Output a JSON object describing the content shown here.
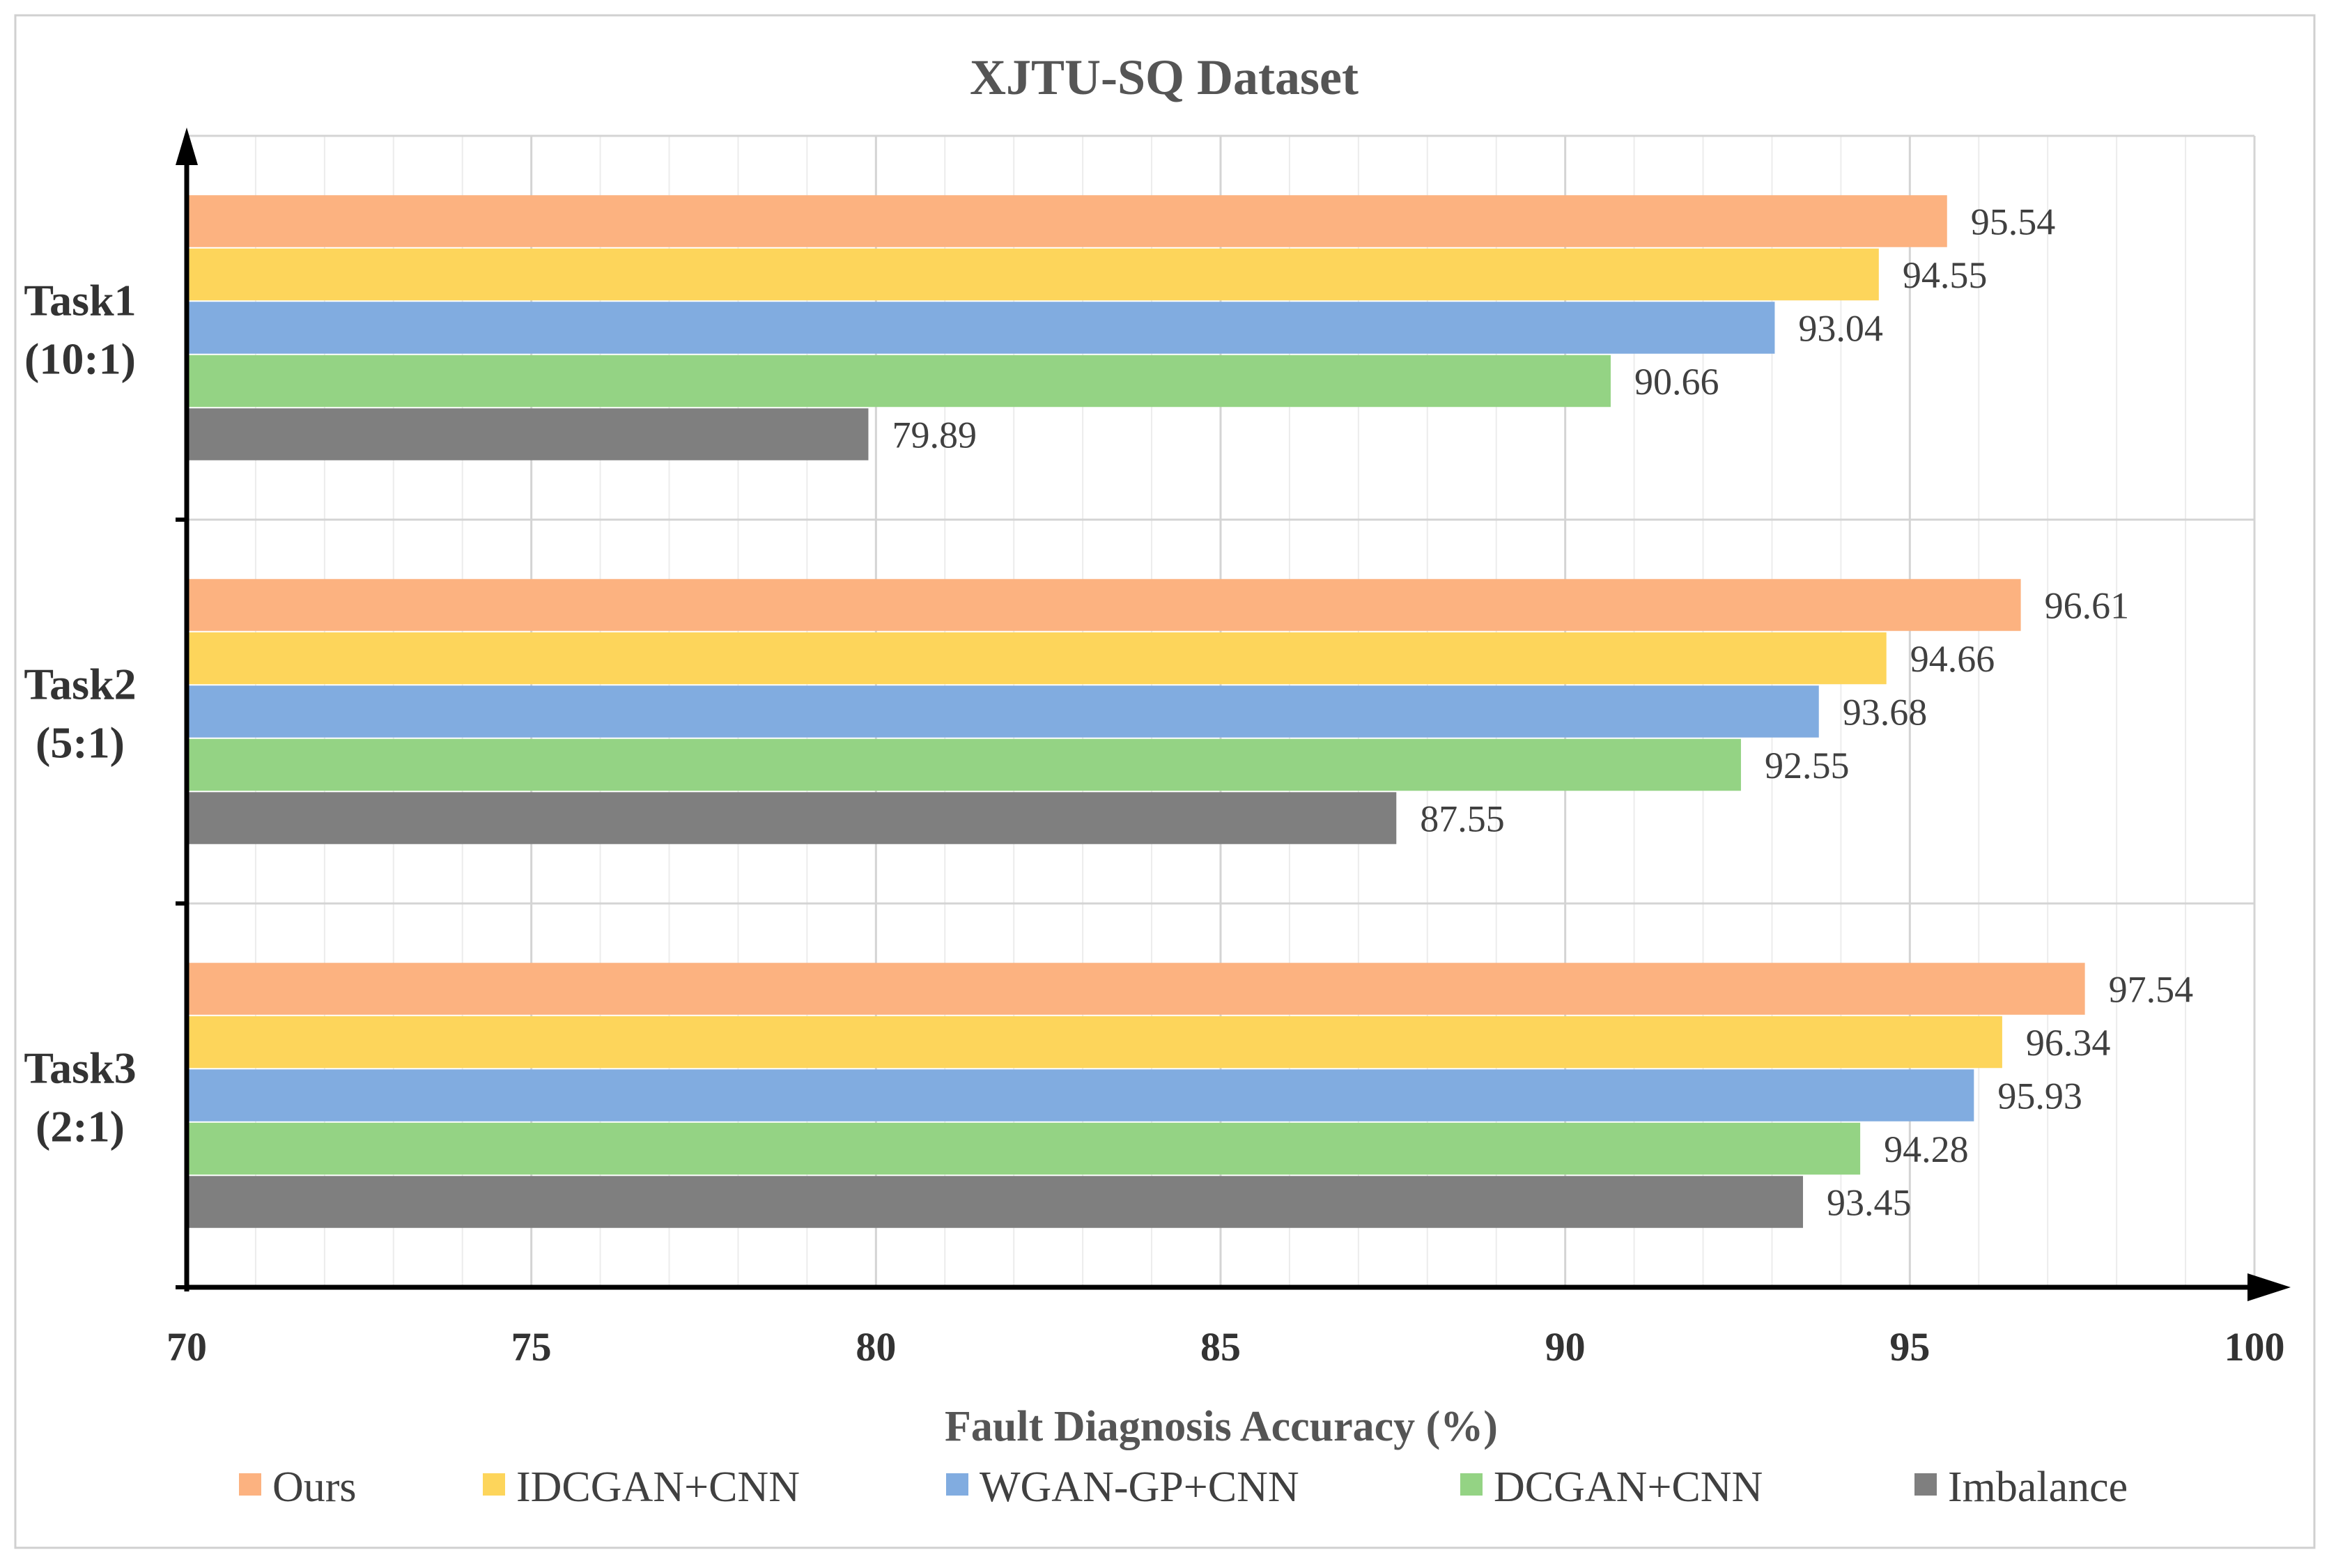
{
  "chart_data": {
    "type": "bar",
    "orientation": "horizontal",
    "title": "XJTU-SQ Dataset",
    "xlabel": "Fault Diagnosis Accuracy (%)",
    "ylabel": "",
    "xlim": [
      70,
      100
    ],
    "xticks": [
      "70",
      "75",
      "80",
      "85",
      "90",
      "95",
      "100"
    ],
    "grid": true,
    "legend_position": "bottom",
    "categories": [
      {
        "line1": "Task1",
        "line2": "(10:1)"
      },
      {
        "line1": "Task2",
        "line2": "(5:1)"
      },
      {
        "line1": "Task3",
        "line2": "(2:1)"
      }
    ],
    "series": [
      {
        "name": "Ours",
        "color": "#FCB280",
        "values": [
          95.54,
          96.61,
          97.54
        ],
        "labels": [
          "95.54",
          "96.61",
          "97.54"
        ]
      },
      {
        "name": "IDCGAN+CNN",
        "color": "#FDD55B",
        "values": [
          94.55,
          94.66,
          96.34
        ],
        "labels": [
          "94.55",
          "94.66",
          "96.34"
        ]
      },
      {
        "name": "WGAN-GP+CNN",
        "color": "#81ACE0",
        "values": [
          93.04,
          93.68,
          95.93
        ],
        "labels": [
          "93.04",
          "93.68",
          "95.93"
        ]
      },
      {
        "name": "DCGAN+CNN",
        "color": "#94D384",
        "values": [
          90.66,
          92.55,
          94.28
        ],
        "labels": [
          "90.66",
          "92.55",
          "94.28"
        ]
      },
      {
        "name": "Imbalance",
        "color": "#7F7F7F",
        "values": [
          79.89,
          87.55,
          93.45
        ],
        "labels": [
          "79.89",
          "87.55",
          "93.45"
        ]
      }
    ]
  }
}
